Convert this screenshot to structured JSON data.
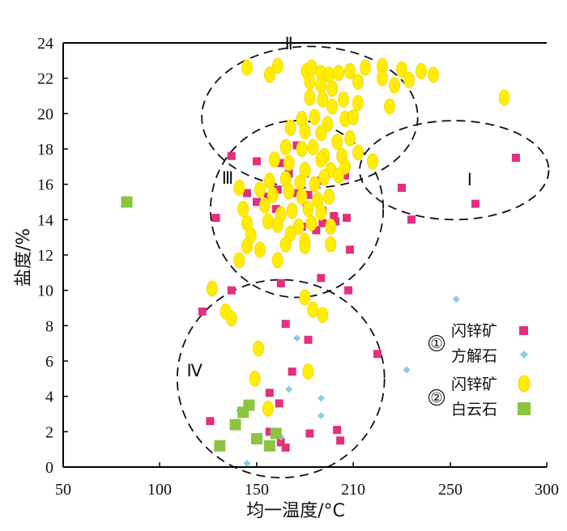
{
  "chart_data": {
    "type": "scatter",
    "title": "",
    "xlabel": "均一温度/°C",
    "ylabel": "盐度/%",
    "xlim": [
      50,
      300
    ],
    "ylim": [
      0,
      24
    ],
    "x_ticks": [
      50,
      100,
      150,
      210,
      250,
      300
    ],
    "x_tick_labels": [
      "50",
      "100",
      "150",
      "210",
      "250",
      "300"
    ],
    "y_ticks": [
      0,
      2,
      4,
      6,
      8,
      10,
      12,
      14,
      16,
      18,
      20,
      22,
      24
    ],
    "y_tick_labels": [
      "0",
      "2",
      "4",
      "6",
      "8",
      "10",
      "12",
      "14",
      "16",
      "18",
      "20",
      "22",
      "24"
    ],
    "grid": false,
    "legend_position": "right",
    "legend": {
      "group1_marker": "①",
      "group2_marker": "②",
      "items": [
        {
          "group": 1,
          "line": 1,
          "label": "闪锌矿",
          "series": "sphalerite_1"
        },
        {
          "group": 1,
          "line": 2,
          "label": "方解石",
          "series": "calcite"
        },
        {
          "group": 2,
          "line": 1,
          "label": "闪锌矿",
          "series": "sphalerite_2"
        },
        {
          "group": 2,
          "line": 2,
          "label": "白云石",
          "series": "dolomite"
        }
      ]
    },
    "regions": [
      {
        "label": "Ⅰ",
        "center": [
          252,
          16.8
        ],
        "radius": [
          44,
          2.8
        ],
        "label_pos": [
          260,
          16.3
        ]
      },
      {
        "label": "Ⅱ",
        "center": [
          183,
          19.8
        ],
        "radius": [
          57,
          4.0
        ],
        "label_pos": [
          170,
          24.0
        ]
      },
      {
        "label": "Ⅲ",
        "center": [
          175,
          14.6
        ],
        "radius": [
          48,
          5.0
        ],
        "label_pos": [
          135,
          16.4
        ]
      },
      {
        "label": "Ⅳ",
        "center": [
          165,
          5.0
        ],
        "radius": [
          57,
          5.6
        ],
        "label_pos": [
          118,
          5.5
        ]
      }
    ],
    "series": [
      {
        "name": "sphalerite_1",
        "label": "闪锌矿 (①)",
        "marker": "square",
        "color": "#e2307d",
        "points": [
          [
            137.0,
            17.6
          ],
          [
            150.0,
            17.3
          ],
          [
            165.0,
            17.2
          ],
          [
            175.0,
            18.2
          ],
          [
            170.0,
            16.6
          ],
          [
            180.0,
            16.6
          ],
          [
            190.0,
            16.2
          ],
          [
            205.0,
            16.5
          ],
          [
            145.0,
            15.5
          ],
          [
            157.0,
            15.3
          ],
          [
            163.0,
            15.7
          ],
          [
            175.0,
            15.5
          ],
          [
            182.0,
            15.4
          ],
          [
            195.0,
            15.2
          ],
          [
            150.0,
            15.0
          ],
          [
            162.0,
            14.6
          ],
          [
            181.0,
            14.8
          ],
          [
            191.0,
            14.5
          ],
          [
            198.0,
            14.2
          ],
          [
            129.0,
            14.1
          ],
          [
            191.0,
            13.8
          ],
          [
            199.0,
            13.9
          ],
          [
            206.0,
            14.1
          ],
          [
            187.0,
            13.4
          ],
          [
            178.0,
            13.6
          ],
          [
            208.0,
            12.3
          ],
          [
            137.0,
            10.0
          ],
          [
            165.0,
            10.4
          ],
          [
            190.0,
            10.7
          ],
          [
            207.0,
            10.0
          ],
          [
            122.0,
            8.8
          ],
          [
            168.0,
            8.1
          ],
          [
            182.0,
            7.2
          ],
          [
            220.0,
            6.4
          ],
          [
            172.0,
            5.4
          ],
          [
            158.0,
            4.2
          ],
          [
            164.0,
            3.6
          ],
          [
            126.0,
            2.6
          ],
          [
            158.0,
            2.0
          ],
          [
            165.0,
            1.4
          ],
          [
            168.0,
            1.1
          ],
          [
            183.0,
            1.9
          ],
          [
            200.0,
            2.1
          ],
          [
            202.0,
            1.5
          ],
          [
            230.0,
            15.8
          ],
          [
            234.0,
            14.0
          ],
          [
            263.0,
            14.9
          ],
          [
            284.0,
            17.5
          ]
        ]
      },
      {
        "name": "calcite",
        "label": "方解石",
        "marker": "diamond",
        "color": "#8fcbe8",
        "points": [
          [
            253.0,
            9.5
          ],
          [
            175.0,
            7.3
          ],
          [
            232.0,
            5.5
          ],
          [
            170.0,
            4.4
          ],
          [
            190.0,
            3.9
          ],
          [
            190.0,
            2.9
          ],
          [
            141.0,
            3.2
          ],
          [
            165.0,
            1.7
          ],
          [
            145.0,
            0.2
          ]
        ]
      },
      {
        "name": "sphalerite_2",
        "label": "闪锌矿 (②)",
        "marker": "ellipse",
        "color": "#ffee00",
        "stroke": "#f4d200",
        "points": [
          [
            145.0,
            22.6
          ],
          [
            158.0,
            22.2
          ],
          [
            163.0,
            22.7
          ],
          [
            181.0,
            22.4
          ],
          [
            184.0,
            22.6
          ],
          [
            190.0,
            22.3
          ],
          [
            195.0,
            22.2
          ],
          [
            201.0,
            22.3
          ],
          [
            208.0,
            22.4
          ],
          [
            215.0,
            22.6
          ],
          [
            222.0,
            22.7
          ],
          [
            230.0,
            22.5
          ],
          [
            238.0,
            22.4
          ],
          [
            243.0,
            22.2
          ],
          [
            183.0,
            21.8
          ],
          [
            190.0,
            21.6
          ],
          [
            197.0,
            21.4
          ],
          [
            212.0,
            21.8
          ],
          [
            222.0,
            22.0
          ],
          [
            227.0,
            21.6
          ],
          [
            233.0,
            21.9
          ],
          [
            183.0,
            20.9
          ],
          [
            191.0,
            20.8
          ],
          [
            197.0,
            20.4
          ],
          [
            204.0,
            20.8
          ],
          [
            212.0,
            20.6
          ],
          [
            225.0,
            20.4
          ],
          [
            278.0,
            20.9
          ],
          [
            178.0,
            19.7
          ],
          [
            186.0,
            19.8
          ],
          [
            194.0,
            19.4
          ],
          [
            205.0,
            19.7
          ],
          [
            210.0,
            19.8
          ],
          [
            171.0,
            19.2
          ],
          [
            180.0,
            19.0
          ],
          [
            190.0,
            18.9
          ],
          [
            200.0,
            18.4
          ],
          [
            208.0,
            18.6
          ],
          [
            168.0,
            18.1
          ],
          [
            178.0,
            18.0
          ],
          [
            185.0,
            18.1
          ],
          [
            192.0,
            17.6
          ],
          [
            203.0,
            17.6
          ],
          [
            212.0,
            17.8
          ],
          [
            161.0,
            17.4
          ],
          [
            170.0,
            17.2
          ],
          [
            180.0,
            16.8
          ],
          [
            190.0,
            17.4
          ],
          [
            196.0,
            16.8
          ],
          [
            205.0,
            17.0
          ],
          [
            218.0,
            17.3
          ],
          [
            158.0,
            16.2
          ],
          [
            168.0,
            16.3
          ],
          [
            177.0,
            16.1
          ],
          [
            186.0,
            16.0
          ],
          [
            192.0,
            16.4
          ],
          [
            201.0,
            16.5
          ],
          [
            141.0,
            15.8
          ],
          [
            152.0,
            15.7
          ],
          [
            160.0,
            15.4
          ],
          [
            170.0,
            15.6
          ],
          [
            178.0,
            15.3
          ],
          [
            188.0,
            15.1
          ],
          [
            195.0,
            15.3
          ],
          [
            143.0,
            14.6
          ],
          [
            155.0,
            14.8
          ],
          [
            165.0,
            14.3
          ],
          [
            172.0,
            14.5
          ],
          [
            182.0,
            14.6
          ],
          [
            190.0,
            14.4
          ],
          [
            145.0,
            13.8
          ],
          [
            157.0,
            13.9
          ],
          [
            163.0,
            13.7
          ],
          [
            176.0,
            13.6
          ],
          [
            184.0,
            13.8
          ],
          [
            196.0,
            13.6
          ],
          [
            147.0,
            13.1
          ],
          [
            171.0,
            13.2
          ],
          [
            180.0,
            12.8
          ],
          [
            145.0,
            12.5
          ],
          [
            152.0,
            12.3
          ],
          [
            168.0,
            12.6
          ],
          [
            180.0,
            12.5
          ],
          [
            196.0,
            12.6
          ],
          [
            141.0,
            11.7
          ],
          [
            163.0,
            11.7
          ],
          [
            127.0,
            10.1
          ],
          [
            180.0,
            9.6
          ],
          [
            134.0,
            8.8
          ],
          [
            137.0,
            8.4
          ],
          [
            185.0,
            8.9
          ],
          [
            191.0,
            8.6
          ],
          [
            151.0,
            6.7
          ],
          [
            149.0,
            5.0
          ],
          [
            182.0,
            5.4
          ],
          [
            157.0,
            3.3
          ]
        ]
      },
      {
        "name": "dolomite",
        "label": "白云石",
        "marker": "square",
        "color": "#8bc53f",
        "points": [
          [
            83.0,
            15.0
          ],
          [
            139.0,
            2.4
          ],
          [
            143.0,
            3.1
          ],
          [
            146.0,
            3.5
          ],
          [
            150.0,
            1.6
          ],
          [
            158.0,
            1.2
          ],
          [
            162.0,
            1.9
          ],
          [
            131.0,
            1.2
          ]
        ]
      }
    ]
  }
}
